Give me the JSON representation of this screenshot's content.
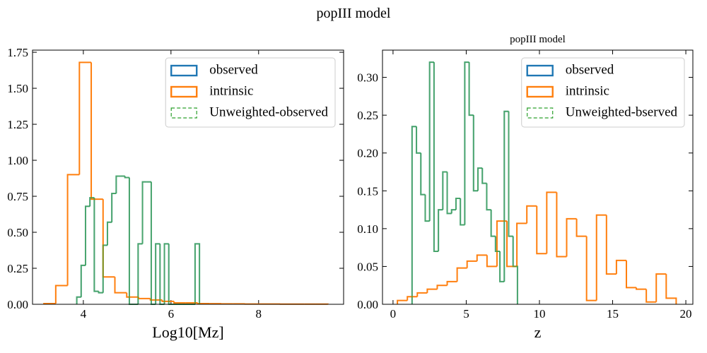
{
  "title": "popIII model",
  "chart_data": [
    {
      "type": "histogram",
      "xlabel": "Log10[Mz]",
      "legend": "upper right",
      "xlim": [
        2.84,
        9.94
      ],
      "xticks": [
        4,
        6,
        8
      ],
      "ylim": [
        0,
        1.765
      ],
      "yticks": [
        {
          "value": 0,
          "label": "0.00"
        },
        {
          "value": 0.25,
          "label": "0.25"
        },
        {
          "value": 0.5,
          "label": "0.50"
        },
        {
          "value": 0.75,
          "label": "0.75"
        },
        {
          "value": 1.0,
          "label": "1.00"
        },
        {
          "value": 1.25,
          "label": "1.25"
        },
        {
          "value": 1.5,
          "label": "1.50"
        },
        {
          "value": 1.75,
          "label": "1.75"
        }
      ],
      "series": [
        {
          "name": "observed",
          "color": "#1f77b4",
          "bins": [
            3.85,
            3.95,
            4.05,
            4.15,
            4.25,
            4.35,
            4.45,
            4.55,
            4.65,
            4.75,
            4.85,
            4.95,
            5.05,
            5.15,
            5.25,
            5.35,
            5.45,
            5.55,
            5.65,
            5.75,
            5.85,
            5.95,
            6.05,
            6.15,
            6.25,
            6.35,
            6.45,
            6.55,
            6.65
          ],
          "values": [
            0.05,
            0.27,
            0.68,
            0.74,
            0.09,
            0.08,
            0.41,
            0.57,
            0.77,
            0.89,
            0.89,
            0.88,
            0,
            0,
            0.42,
            0.85,
            0.85,
            0,
            0.42,
            0,
            0.42,
            0,
            0,
            0,
            0,
            0,
            0,
            0.42
          ]
        },
        {
          "name": "intrinsic",
          "color": "#ff7f0e",
          "bins": [
            3.1,
            3.37,
            3.64,
            3.91,
            4.18,
            4.45,
            4.72,
            4.99,
            5.26,
            5.53,
            5.8,
            6.07,
            6.34,
            6.61,
            6.88,
            7.15,
            7.42,
            7.69,
            7.96,
            8.23,
            8.5,
            8.77,
            9.04,
            9.31,
            9.58
          ],
          "values": [
            0.005,
            0.13,
            0.9,
            1.68,
            0.73,
            0.19,
            0.08,
            0.05,
            0.04,
            0.03,
            0.02,
            0.01,
            0.01,
            0.005,
            0.004,
            0.003,
            0.003,
            0.002,
            0.002,
            0.002,
            0.001,
            0.001,
            0.001,
            0.001
          ]
        },
        {
          "name": "Unweighted-observed",
          "color": "#2ca02c",
          "bins": [
            3.85,
            3.95,
            4.05,
            4.15,
            4.25,
            4.35,
            4.45,
            4.55,
            4.65,
            4.75,
            4.85,
            4.95,
            5.05,
            5.15,
            5.25,
            5.35,
            5.45,
            5.55,
            5.65,
            5.75,
            5.85,
            5.95,
            6.05,
            6.15,
            6.25,
            6.35,
            6.45,
            6.55,
            6.65
          ],
          "values": [
            0.05,
            0.27,
            0.68,
            0.74,
            0.09,
            0.08,
            0.41,
            0.57,
            0.77,
            0.89,
            0.89,
            0.88,
            0,
            0,
            0.42,
            0.85,
            0.85,
            0,
            0.42,
            0,
            0.42,
            0,
            0,
            0,
            0,
            0,
            0,
            0.42
          ]
        }
      ]
    },
    {
      "type": "histogram",
      "title": "popIII model",
      "xlabel": "z",
      "legend": "upper right",
      "xlim": [
        -0.72,
        20.48
      ],
      "xticks": [
        0,
        5,
        10,
        15,
        20
      ],
      "ylim": [
        0,
        0.336
      ],
      "yticks": [
        {
          "value": 0,
          "label": "0.00"
        },
        {
          "value": 0.05,
          "label": "0.05"
        },
        {
          "value": 0.1,
          "label": "0.10"
        },
        {
          "value": 0.15,
          "label": "0.15"
        },
        {
          "value": 0.2,
          "label": "0.20"
        },
        {
          "value": 0.25,
          "label": "0.25"
        },
        {
          "value": 0.3,
          "label": "0.30"
        }
      ],
      "series": [
        {
          "name": "observed",
          "color": "#1f77b4",
          "bins": [
            1.3,
            1.6,
            1.9,
            2.2,
            2.5,
            2.8,
            3.1,
            3.4,
            3.7,
            4.0,
            4.3,
            4.6,
            4.9,
            5.2,
            5.5,
            5.8,
            6.1,
            6.4,
            6.7,
            7.0,
            7.3,
            7.6,
            7.9,
            8.2,
            8.5
          ],
          "values": [
            0.235,
            0.2,
            0.145,
            0.11,
            0.32,
            0.07,
            0.125,
            0.175,
            0.12,
            0.125,
            0.14,
            0.105,
            0.32,
            0.25,
            0.15,
            0.18,
            0.16,
            0.125,
            0.09,
            0.07,
            0.03,
            0.255,
            0.09,
            0.05
          ]
        },
        {
          "name": "intrinsic",
          "color": "#ff7f0e",
          "bins": [
            0.3,
            0.98,
            1.66,
            2.34,
            3.02,
            3.7,
            4.38,
            5.06,
            5.74,
            6.42,
            7.1,
            7.78,
            8.46,
            9.14,
            9.82,
            10.5,
            11.18,
            11.86,
            12.54,
            13.22,
            13.9,
            14.58,
            15.26,
            15.94,
            16.62,
            17.3,
            17.98,
            18.66,
            19.34
          ],
          "values": [
            0.005,
            0.01,
            0.015,
            0.02,
            0.025,
            0.03,
            0.048,
            0.057,
            0.065,
            0.05,
            0.11,
            0.05,
            0.107,
            0.13,
            0.067,
            0.148,
            0.063,
            0.113,
            0.09,
            0.005,
            0.118,
            0.04,
            0.058,
            0.022,
            0.02,
            0.003,
            0.04,
            0.008
          ]
        },
        {
          "name": "Unweighted-bserved",
          "color": "#2ca02c",
          "bins": [
            1.3,
            1.6,
            1.9,
            2.2,
            2.5,
            2.8,
            3.1,
            3.4,
            3.7,
            4.0,
            4.3,
            4.6,
            4.9,
            5.2,
            5.5,
            5.8,
            6.1,
            6.4,
            6.7,
            7.0,
            7.3,
            7.6,
            7.9,
            8.2,
            8.5
          ],
          "values": [
            0.235,
            0.2,
            0.145,
            0.11,
            0.32,
            0.07,
            0.125,
            0.175,
            0.12,
            0.125,
            0.14,
            0.105,
            0.32,
            0.25,
            0.15,
            0.18,
            0.16,
            0.125,
            0.09,
            0.07,
            0.03,
            0.255,
            0.09,
            0.05
          ]
        }
      ]
    }
  ]
}
